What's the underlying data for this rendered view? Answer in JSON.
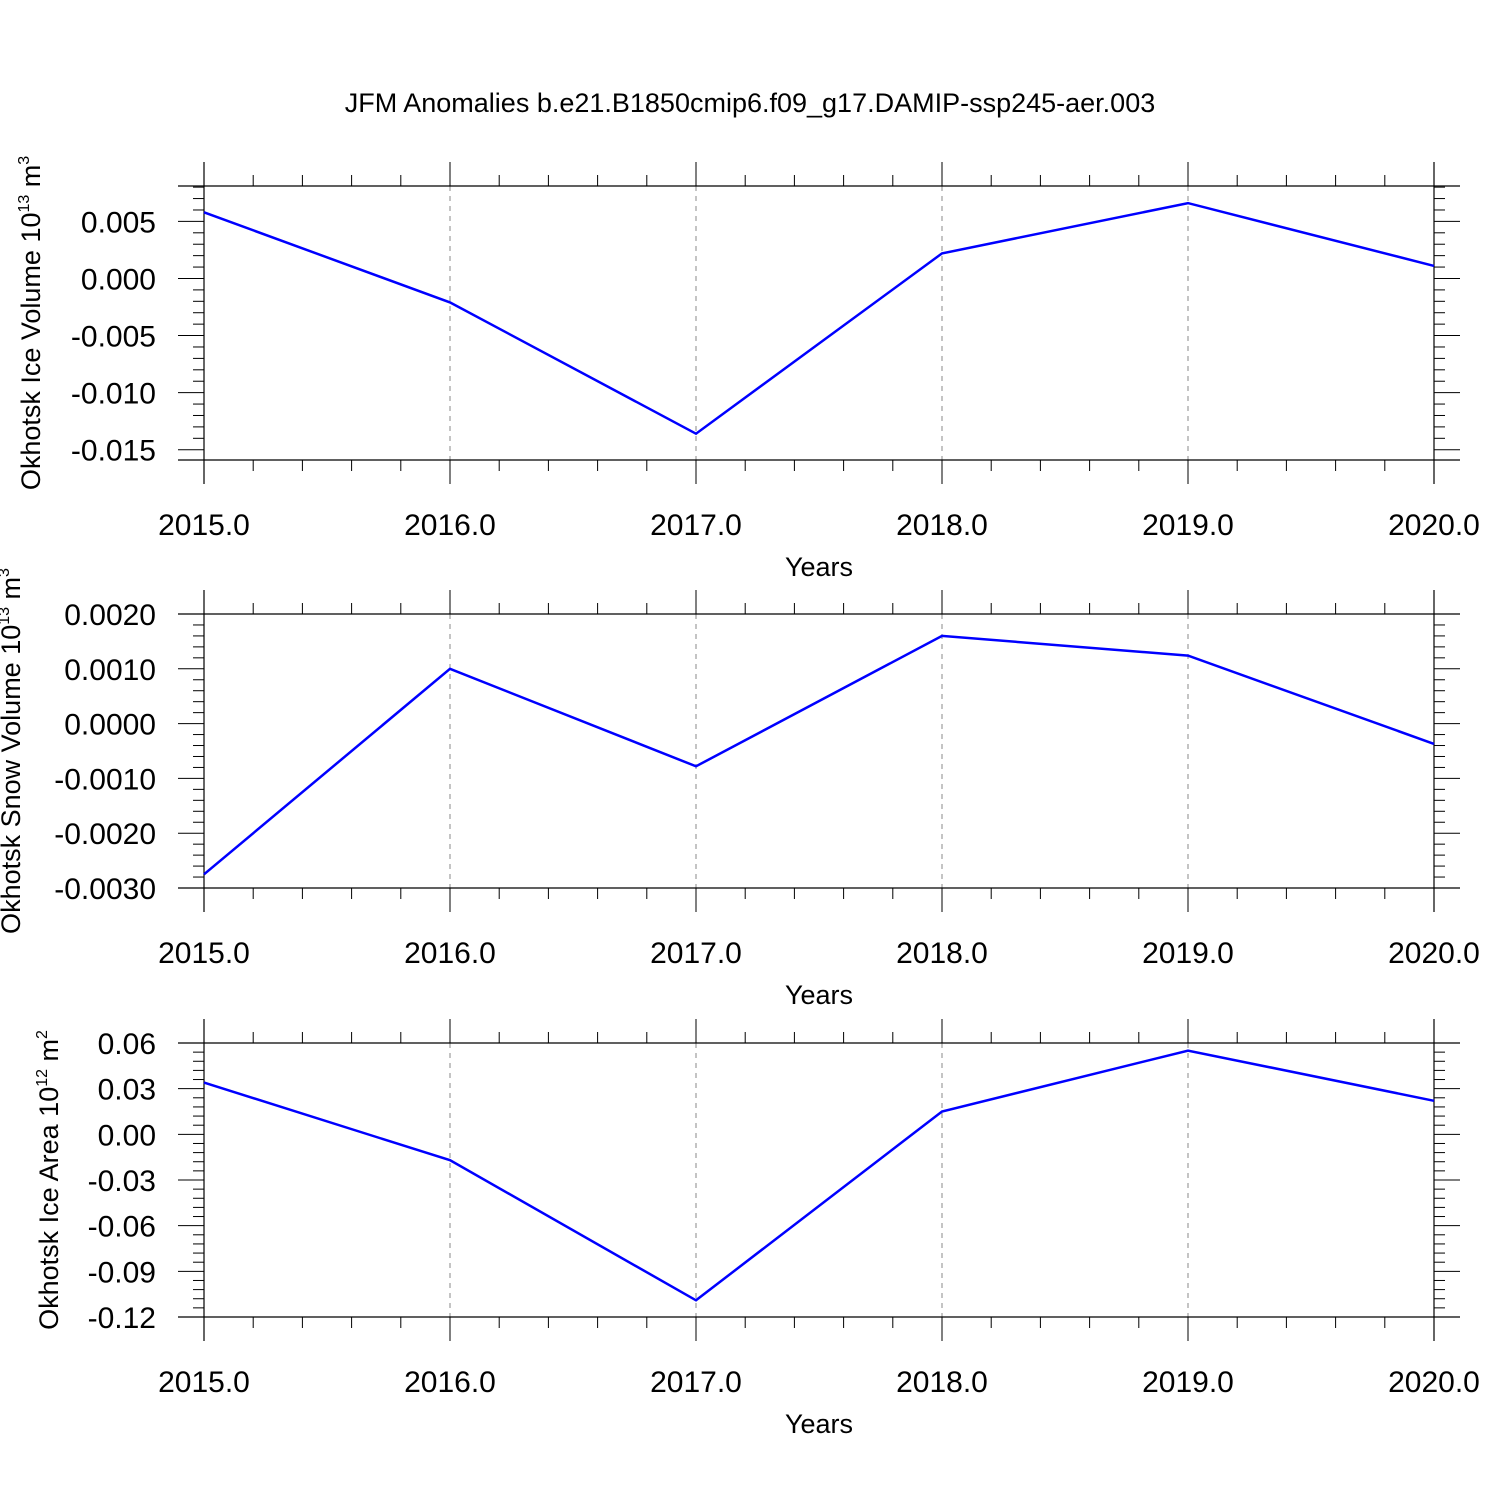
{
  "title": "JFM Anomalies b.e21.B1850cmip6.f09_g17.DAMIP-ssp245-aer.003",
  "chart_data": [
    {
      "type": "line",
      "ylabel": "Okhotsk Ice Volume 10",
      "ylabel_exp": "13",
      "ylabel_unit": "m",
      "ylabel_unit_exp": "3",
      "xlabel": "Years",
      "x": [
        2015,
        2016,
        2017,
        2018,
        2019,
        2020
      ],
      "x_ticklabels": [
        "2015.0",
        "2016.0",
        "2017.0",
        "2018.0",
        "2019.0",
        "2020.0"
      ],
      "y_ticks": [
        0.005,
        0.0,
        -0.005,
        -0.01,
        -0.015
      ],
      "y_ticklabels": [
        "0.005",
        "0.000",
        "-0.005",
        "-0.010",
        "-0.015"
      ],
      "ylim": [
        -0.0159,
        0.0081
      ],
      "xlim": [
        2015,
        2020
      ],
      "grid": "vertical dashed at each year",
      "series": [
        {
          "values": [
            0.0058,
            -0.0021,
            -0.0136,
            0.0022,
            0.0066,
            0.0011
          ],
          "color": "#0000ff"
        }
      ]
    },
    {
      "type": "line",
      "ylabel": "Okhotsk Snow Volume 10",
      "ylabel_exp": "13",
      "ylabel_unit": "m",
      "ylabel_unit_exp": "3",
      "xlabel": "Years",
      "x": [
        2015,
        2016,
        2017,
        2018,
        2019,
        2020
      ],
      "x_ticklabels": [
        "2015.0",
        "2016.0",
        "2017.0",
        "2018.0",
        "2019.0",
        "2020.0"
      ],
      "y_ticks": [
        0.002,
        0.001,
        0.0,
        -0.001,
        -0.002,
        -0.003
      ],
      "y_ticklabels": [
        "0.0020",
        "0.0010",
        "0.0000",
        "-0.0010",
        "-0.0020",
        "-0.0030"
      ],
      "ylim": [
        -0.003,
        0.002
      ],
      "xlim": [
        2015,
        2020
      ],
      "grid": "vertical dashed at each year",
      "series": [
        {
          "values": [
            -0.00275,
            0.001,
            -0.00078,
            0.0016,
            0.00124,
            -0.00037
          ],
          "color": "#0000ff"
        }
      ]
    },
    {
      "type": "line",
      "ylabel": "Okhotsk Ice Area 10",
      "ylabel_exp": "12",
      "ylabel_unit": "m",
      "ylabel_unit_exp": "2",
      "xlabel": "Years",
      "x": [
        2015,
        2016,
        2017,
        2018,
        2019,
        2020
      ],
      "x_ticklabels": [
        "2015.0",
        "2016.0",
        "2017.0",
        "2018.0",
        "2019.0",
        "2020.0"
      ],
      "y_ticks": [
        0.06,
        0.03,
        0.0,
        -0.03,
        -0.06,
        -0.09,
        -0.12
      ],
      "y_ticklabels": [
        "0.06",
        "0.03",
        "0.00",
        "-0.03",
        "-0.06",
        "-0.09",
        "-0.12"
      ],
      "ylim": [
        -0.12,
        0.06
      ],
      "xlim": [
        2015,
        2020
      ],
      "grid": "vertical dashed at each year",
      "series": [
        {
          "values": [
            0.034,
            -0.017,
            -0.109,
            0.015,
            0.055,
            0.022
          ],
          "color": "#0000ff"
        }
      ]
    }
  ]
}
